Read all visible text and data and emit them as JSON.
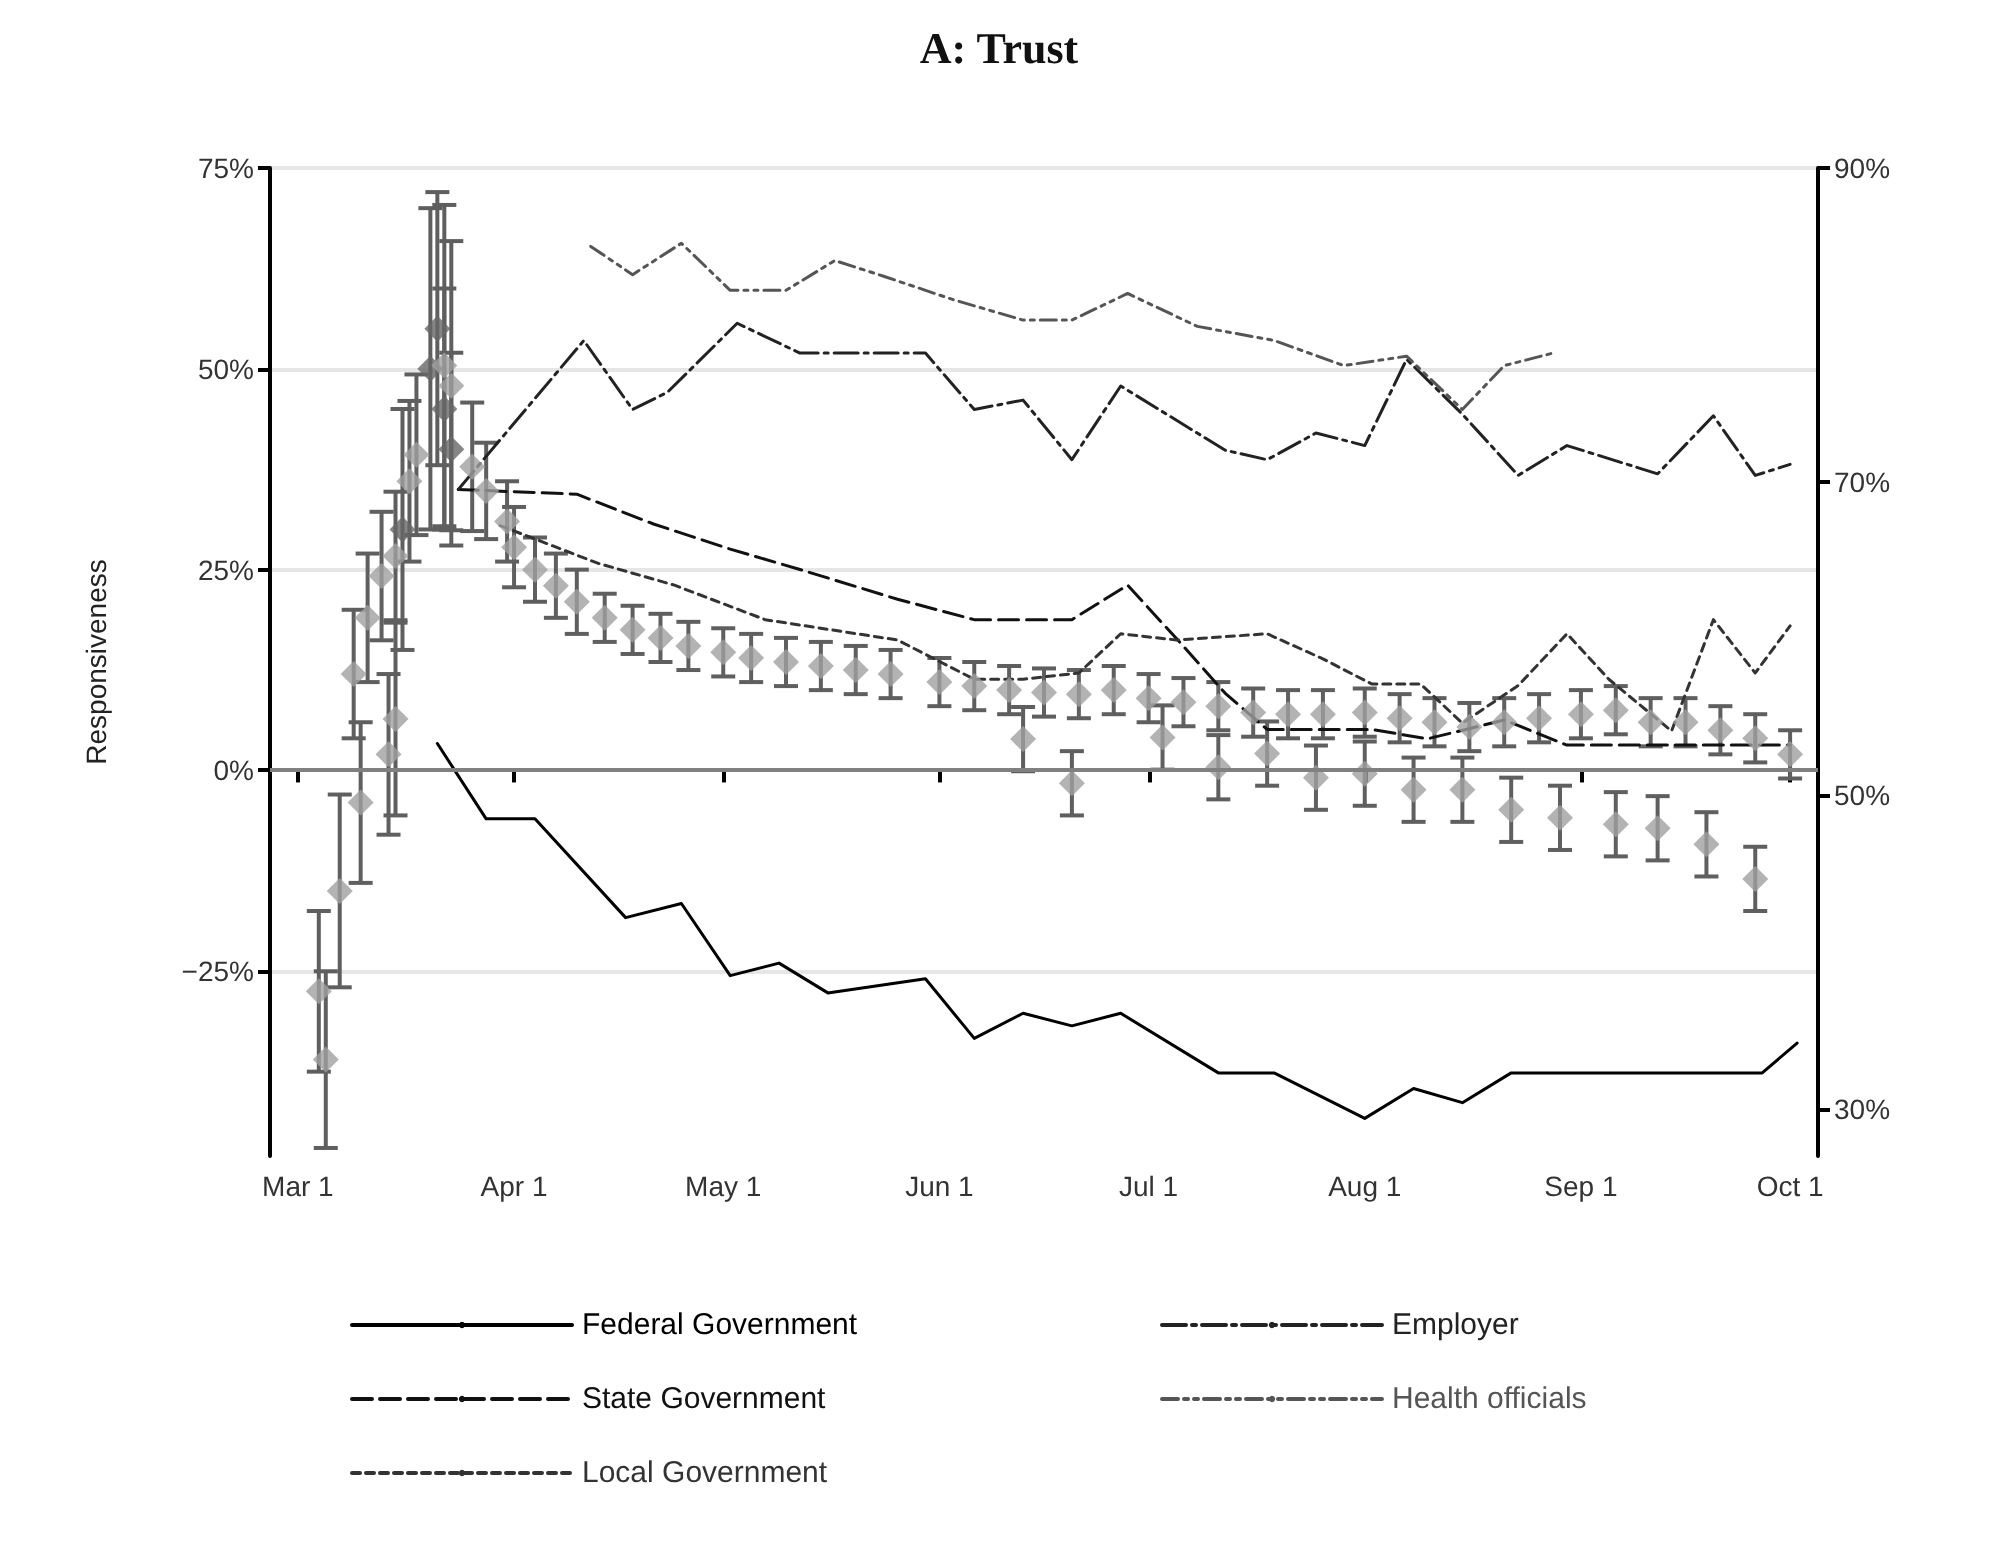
{
  "chart_data": {
    "type": "line",
    "title": "A: Trust",
    "ylabel": "Responsiveness",
    "xlim": [
      "--02-25",
      "--10-05"
    ],
    "xticks": [
      {
        "value": "--03-01",
        "label": "Mar 1"
      },
      {
        "value": "--04-01",
        "label": "Apr 1"
      },
      {
        "value": "--05-01",
        "label": "May 1"
      },
      {
        "value": "--06-01",
        "label": "Jun 1"
      },
      {
        "value": "--07-01",
        "label": "Jul 1"
      },
      {
        "value": "--08-01",
        "label": "Aug 1"
      },
      {
        "value": "--09-01",
        "label": "Sep 1"
      },
      {
        "value": "--10-01",
        "label": "Oct 1"
      }
    ],
    "ylim": [
      -48,
      75
    ],
    "yticks": [
      {
        "value": -25,
        "label": "−25%"
      },
      {
        "value": 0,
        "label": "0%"
      },
      {
        "value": 25,
        "label": "25%"
      },
      {
        "value": 50,
        "label": "50%"
      },
      {
        "value": 75,
        "label": "75%"
      }
    ],
    "y2lim": [
      27,
      90
    ],
    "y2ticks": [
      {
        "value": 30,
        "label": "30%"
      },
      {
        "value": 50,
        "label": "50%"
      },
      {
        "value": 70,
        "label": "70%"
      },
      {
        "value": 90,
        "label": "90%"
      }
    ],
    "grid": "y",
    "legend": "bottom",
    "ref_lines": [
      {
        "axis": "y",
        "value": 0,
        "color": "#808080"
      }
    ],
    "series": [
      {
        "name": "Federal Government",
        "axis": "y2",
        "color": "#000000",
        "line_style": "solid",
        "marker": "none",
        "x": [
          "--03-21",
          "--03-28",
          "--04-04",
          "--04-17",
          "--04-25",
          "--05-02",
          "--05-09",
          "--05-16",
          "--05-30",
          "--06-06",
          "--06-13",
          "--06-20",
          "--06-27",
          "--07-11",
          "--07-19",
          "--08-01",
          "--08-08",
          "--08-15",
          "--08-22",
          "--09-27",
          "--10-02"
        ],
        "values": [
          53.3,
          48.5,
          48.5,
          42.2,
          43.1,
          38.5,
          39.3,
          37.4,
          38.3,
          34.5,
          36.1,
          35.3,
          36.1,
          32.3,
          32.3,
          29.4,
          31.3,
          30.4,
          32.3,
          32.3,
          34.2
        ]
      },
      {
        "name": "State Government",
        "axis": "y2",
        "color": "#111111",
        "line_style": "dashed",
        "marker": "none",
        "x": [
          "--03-24",
          "--04-10",
          "--04-21",
          "--05-02",
          "--05-12",
          "--05-26",
          "--06-06",
          "--06-20",
          "--06-28",
          "--07-06",
          "--07-12",
          "--07-18",
          "--08-02",
          "--08-10",
          "--08-21",
          "--08-30",
          "--10-01"
        ],
        "values": [
          69.5,
          69.2,
          67.3,
          65.7,
          64.4,
          62.5,
          61.2,
          61.2,
          63.4,
          59.5,
          56.5,
          54.2,
          54.2,
          53.6,
          54.8,
          53.2,
          53.2
        ]
      },
      {
        "name": "Local Government",
        "axis": "y2",
        "color": "#333333",
        "line_style": "dotted",
        "marker": "none",
        "x": [
          "--03-30",
          "--04-13",
          "--04-24",
          "--05-07",
          "--05-26",
          "--06-06",
          "--06-13",
          "--06-21",
          "--06-27",
          "--07-05",
          "--07-18",
          "--07-26",
          "--08-02",
          "--08-09",
          "--08-15",
          "--08-23",
          "--08-30",
          "--09-05",
          "--09-14",
          "--09-20",
          "--09-26",
          "--10-01"
        ],
        "values": [
          67.2,
          64.8,
          63.4,
          61.2,
          59.9,
          57.4,
          57.4,
          57.8,
          60.3,
          59.9,
          60.3,
          58.7,
          57.1,
          57.1,
          54.6,
          57.0,
          60.3,
          57.4,
          54.1,
          61.2,
          57.8,
          60.8
        ]
      },
      {
        "name": "Employer",
        "axis": "y2",
        "color": "#222222",
        "line_style": "dashdot",
        "marker": "none",
        "x": [
          "--03-24",
          "--04-11",
          "--04-18",
          "--04-23",
          "--05-03",
          "--05-12",
          "--05-30",
          "--06-06",
          "--06-13",
          "--06-20",
          "--06-27",
          "--07-12",
          "--07-18",
          "--07-25",
          "--08-01",
          "--08-07",
          "--08-15",
          "--08-23",
          "--08-30",
          "--09-12",
          "--09-20",
          "--09-26",
          "--10-01"
        ],
        "values": [
          69.5,
          79.0,
          74.6,
          75.7,
          80.1,
          78.2,
          78.2,
          74.6,
          75.2,
          71.4,
          76.1,
          72.0,
          71.4,
          73.1,
          72.3,
          77.8,
          74.3,
          70.4,
          72.3,
          70.5,
          74.2,
          70.4,
          71.1
        ]
      },
      {
        "name": "Health officials",
        "axis": "y2",
        "color": "#555555",
        "line_style": "dashdotdot",
        "marker": "none",
        "x": [
          "--04-12",
          "--04-18",
          "--04-25",
          "--05-02",
          "--05-10",
          "--05-17",
          "--05-24",
          "--06-03",
          "--06-13",
          "--06-20",
          "--06-28",
          "--07-08",
          "--07-19",
          "--07-29",
          "--08-07",
          "--08-15",
          "--08-21",
          "--08-28"
        ],
        "values": [
          85.0,
          83.2,
          85.2,
          82.2,
          82.2,
          84.1,
          83.1,
          81.6,
          80.3,
          80.3,
          82.0,
          79.9,
          79.0,
          77.4,
          78.0,
          74.6,
          77.4,
          78.2
        ]
      },
      {
        "type": "scatter",
        "color": "#666666",
        "marker": "diamond",
        "x": [
          "--03-16",
          "--03-18",
          "--03-20",
          "--03-21",
          "--03-22",
          "--03-23"
        ],
        "values": [
          30,
          null,
          50,
          55,
          45,
          40
        ],
        "errors": [
          15,
          null,
          20,
          17,
          15,
          12
        ]
      },
      {
        "type": "scatter",
        "color": "#a0a0a0",
        "marker": "diamond",
        "x": [
          "--03-09",
          "--03-11",
          "--03-13",
          "--03-15",
          "--03-17",
          "--03-18",
          "--03-22",
          "--03-23",
          "--03-26",
          "--03-28",
          "--03-31",
          "--04-01",
          "--04-04",
          "--04-07",
          "--04-10",
          "--04-14",
          "--04-18",
          "--04-22",
          "--04-26",
          "--05-01",
          "--05-05",
          "--05-10",
          "--05-15",
          "--05-20",
          "--05-25",
          "--06-01",
          "--06-06",
          "--06-11",
          "--06-16",
          "--06-21",
          "--06-26",
          "--07-01",
          "--07-06",
          "--07-11",
          "--07-16",
          "--07-21",
          "--07-26",
          "--08-01",
          "--08-06",
          "--08-11",
          "--08-16",
          "--08-21",
          "--08-26",
          "--09-01",
          "--09-06",
          "--09-11",
          "--09-16",
          "--09-21",
          "--09-26",
          "--10-01"
        ],
        "values": [
          12,
          19,
          24.2,
          26.7,
          36,
          39.3,
          50.4,
          47.9,
          37.8,
          34.8,
          31,
          27.8,
          25,
          23,
          21,
          19,
          17.5,
          16.5,
          15.5,
          14.7,
          14,
          13.5,
          13,
          12.5,
          12,
          11,
          10.5,
          10,
          9.7,
          9.5,
          10,
          9,
          8.5,
          8,
          7.2,
          7,
          7,
          7.2,
          6.5,
          6,
          5.4,
          6,
          6.5,
          7,
          7.5,
          6,
          6,
          5,
          4,
          2
        ],
        "errors": [
          8,
          8,
          8,
          8,
          10,
          10,
          20,
          18,
          8,
          6,
          5,
          5,
          4,
          4,
          4,
          3,
          3,
          3,
          3,
          3,
          3,
          3,
          3,
          3,
          3,
          3,
          3,
          3,
          3,
          3,
          3,
          3,
          3,
          3,
          3,
          3,
          3,
          3,
          3,
          3,
          3,
          3,
          3,
          3,
          3,
          3,
          3,
          3,
          3,
          3
        ]
      },
      {
        "type": "scatter",
        "color": "#a0a0a0",
        "marker": "diamond",
        "x": [
          "--03-04",
          "--03-05",
          "--03-07",
          "--03-10",
          "--03-14",
          "--03-15",
          "--06-13",
          "--06-20",
          "--07-03",
          "--07-11",
          "--07-18",
          "--07-25",
          "--08-01",
          "--08-08",
          "--08-15",
          "--08-22",
          "--08-29",
          "--09-06",
          "--09-12",
          "--09-19",
          "--09-26"
        ],
        "values": [
          -27.5,
          -36,
          -15,
          -4,
          2,
          6.4,
          3.9,
          -1.6,
          4.1,
          0.4,
          2.1,
          -0.9,
          -0.4,
          -2.4,
          -2.4,
          -4.9,
          -5.9,
          -6.7,
          -7.2,
          -9.2,
          -13.5
        ],
        "errors": [
          10,
          11,
          12,
          10,
          10,
          12,
          4,
          4,
          4,
          4,
          4,
          4,
          4,
          4,
          4,
          4,
          4,
          4,
          4,
          4,
          4
        ]
      }
    ]
  }
}
